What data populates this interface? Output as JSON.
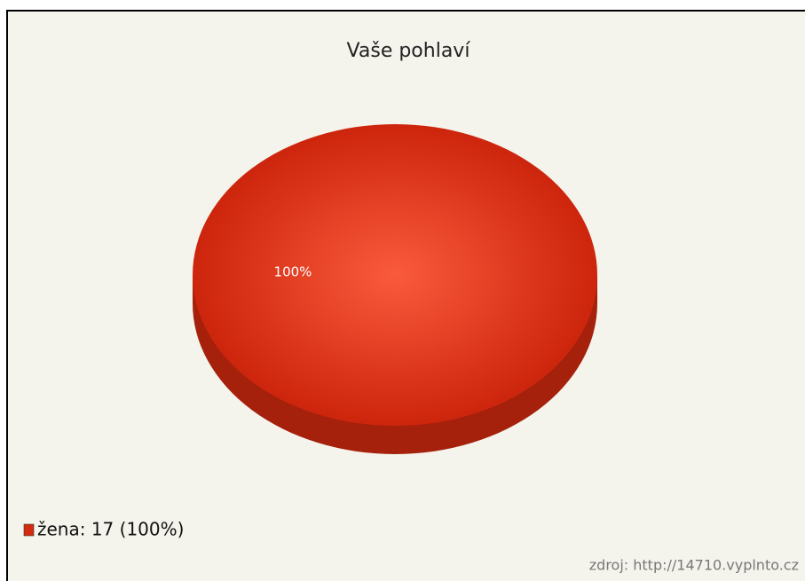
{
  "chart_data": {
    "type": "pie",
    "title": "Vaše pohlaví",
    "categories": [
      "žena: 17 (100%)"
    ],
    "values": [
      100
    ],
    "value_labels": [
      "100%"
    ],
    "colors": [
      "#d42a10"
    ],
    "source": "zdroj: http://14710.vyplnto.cz"
  }
}
